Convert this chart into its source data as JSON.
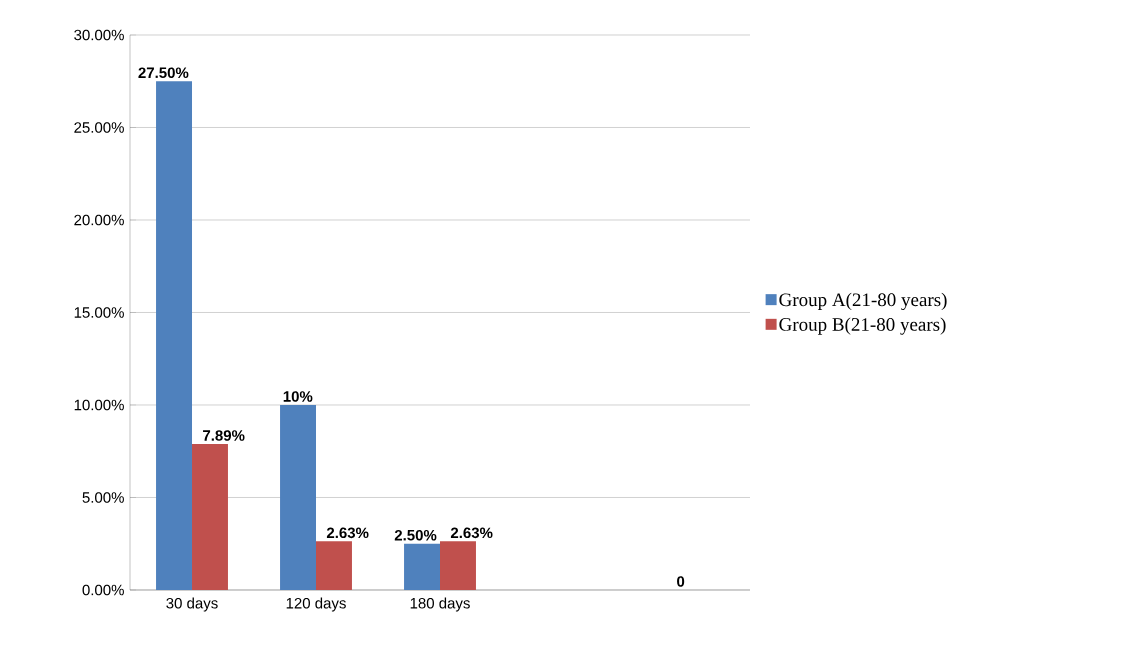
{
  "chart_data": {
    "type": "bar",
    "categories": [
      "30 days",
      "120 days",
      "180 days",
      null,
      null
    ],
    "series": [
      {
        "name": "Group A(21-80 years)",
        "color": "#4f81bd",
        "values": [
          27.5,
          10,
          2.5,
          null,
          0
        ],
        "value_labels": [
          "27.50%",
          "10%",
          "2.50%",
          null,
          "0"
        ]
      },
      {
        "name": "Group B(21-80 years)",
        "color": "#c0504d",
        "values": [
          7.89,
          2.63,
          2.63,
          null,
          null
        ],
        "value_labels": [
          "7.89%",
          "2.63%",
          "2.63%",
          null,
          null
        ]
      }
    ],
    "ylim": [
      0,
      30
    ],
    "yticks": [
      {
        "value": 0,
        "label": "0.00%"
      },
      {
        "value": 5,
        "label": "5.00%"
      },
      {
        "value": 10,
        "label": "10.00%"
      },
      {
        "value": 15,
        "label": "15.00%"
      },
      {
        "value": 20,
        "label": "20.00%"
      },
      {
        "value": 25,
        "label": "25.00%"
      },
      {
        "value": 30,
        "label": "30.00%"
      }
    ],
    "grid": "y",
    "legend": "right"
  }
}
